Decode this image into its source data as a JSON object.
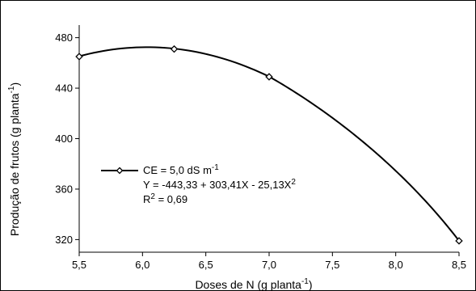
{
  "chart_data": {
    "type": "line",
    "x": [
      5.5,
      6.25,
      7.0,
      8.5
    ],
    "series": [
      {
        "name": "CE = 5,0 dS m",
        "name_sup": "-1",
        "values": [
          465,
          471,
          449,
          319
        ],
        "color": "#000000",
        "marker": "diamond-open"
      }
    ],
    "xlabel": "Doses de N (g planta",
    "xlabel_sup": "-1",
    "xlabel_end": ")",
    "ylabel": "Produção de frutos (g planta",
    "ylabel_sup": "-1",
    "ylabel_end": ")",
    "xlim": [
      5.5,
      8.5
    ],
    "ylim": [
      310,
      490
    ],
    "xticks": [
      5.5,
      6.0,
      6.5,
      7.0,
      7.5,
      8.0,
      8.5
    ],
    "xtick_labels": [
      "5,5",
      "6,0",
      "6,5",
      "7,0",
      "7,5",
      "8,0",
      "8,5"
    ],
    "yticks": [
      320,
      360,
      400,
      440,
      480
    ],
    "ytick_labels": [
      "320",
      "360",
      "400",
      "440",
      "480"
    ],
    "grid": false,
    "legend_position": "center-left",
    "annotations": {
      "equation_main": "Y = -443,33 + 303,41X - 25,13X",
      "equation_sup": "2",
      "r2_prefix": "R",
      "r2_sup": "2",
      "r2_value": " = 0,69"
    },
    "fit": {
      "type": "quadratic",
      "segment_end_x": 7.0,
      "coefficients": [
        -443.33,
        303.41,
        -25.13
      ]
    }
  }
}
